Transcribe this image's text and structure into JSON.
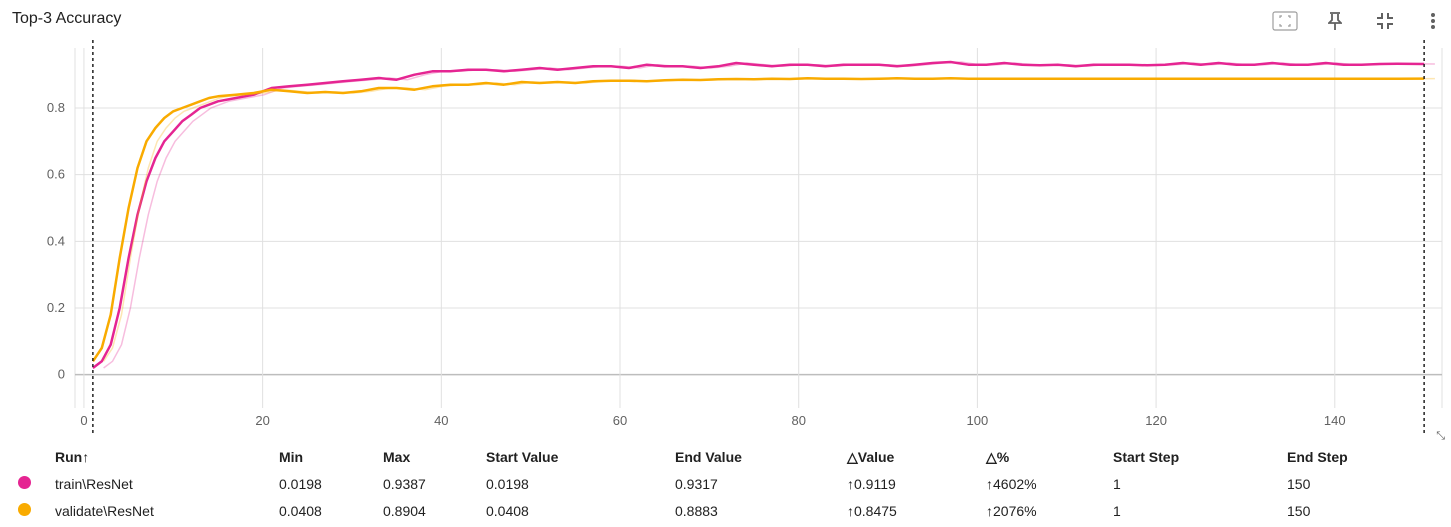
{
  "title": "Top-3 Accuracy",
  "toolbar": {
    "fit_icon": "fit-domain-icon",
    "pin_icon": "pin-icon",
    "collapse_icon": "collapse-icon",
    "more_icon": "more-vert-icon"
  },
  "colors": {
    "train": "#e52592",
    "validate": "#f9ab00"
  },
  "chart_data": {
    "type": "line",
    "xlim": [
      -1,
      152
    ],
    "ylim": [
      -0.1,
      0.98
    ],
    "x_ticks": [
      0,
      20,
      40,
      60,
      80,
      100,
      120,
      140
    ],
    "y_ticks": [
      0,
      0.2,
      0.4,
      0.6,
      0.8
    ],
    "y_tick_labels": [
      "0",
      "0.2",
      "0.4",
      "0.6",
      "0.8"
    ],
    "range_markers": [
      {
        "step": 1,
        "label": "1"
      },
      {
        "step": 150,
        "label": "150"
      }
    ],
    "grid": true,
    "series": [
      {
        "name": "train\\ResNet",
        "color": "#e52592",
        "x": [
          1,
          2,
          3,
          4,
          5,
          6,
          7,
          8,
          9,
          10,
          11,
          12,
          13,
          14,
          15,
          17,
          19,
          21,
          23,
          25,
          27,
          29,
          31,
          33,
          35,
          37,
          39,
          41,
          43,
          45,
          47,
          49,
          51,
          53,
          55,
          57,
          59,
          61,
          63,
          65,
          67,
          69,
          71,
          73,
          75,
          77,
          79,
          81,
          83,
          85,
          87,
          89,
          91,
          93,
          95,
          97,
          99,
          101,
          103,
          105,
          107,
          109,
          111,
          113,
          115,
          117,
          119,
          121,
          123,
          125,
          127,
          129,
          131,
          133,
          135,
          137,
          139,
          141,
          143,
          145,
          147,
          150
        ],
        "y": [
          0.02,
          0.04,
          0.09,
          0.2,
          0.35,
          0.48,
          0.58,
          0.65,
          0.7,
          0.73,
          0.76,
          0.78,
          0.8,
          0.81,
          0.82,
          0.83,
          0.84,
          0.86,
          0.865,
          0.87,
          0.875,
          0.88,
          0.885,
          0.89,
          0.885,
          0.9,
          0.91,
          0.91,
          0.915,
          0.915,
          0.91,
          0.915,
          0.92,
          0.915,
          0.92,
          0.925,
          0.925,
          0.92,
          0.93,
          0.925,
          0.925,
          0.92,
          0.925,
          0.935,
          0.93,
          0.925,
          0.93,
          0.93,
          0.925,
          0.93,
          0.93,
          0.93,
          0.925,
          0.93,
          0.935,
          0.938,
          0.93,
          0.93,
          0.935,
          0.93,
          0.928,
          0.93,
          0.925,
          0.93,
          0.93,
          0.93,
          0.928,
          0.93,
          0.935,
          0.93,
          0.935,
          0.93,
          0.93,
          0.935,
          0.93,
          0.93,
          0.935,
          0.93,
          0.93,
          0.932,
          0.933,
          0.932
        ]
      },
      {
        "name": "validate\\ResNet",
        "color": "#f9ab00",
        "x": [
          1,
          2,
          3,
          4,
          5,
          6,
          7,
          8,
          9,
          10,
          11,
          12,
          13,
          14,
          15,
          17,
          19,
          21,
          23,
          25,
          27,
          29,
          31,
          33,
          35,
          37,
          39,
          41,
          43,
          45,
          47,
          49,
          51,
          53,
          55,
          57,
          59,
          61,
          63,
          65,
          67,
          69,
          71,
          73,
          75,
          77,
          79,
          81,
          83,
          85,
          87,
          89,
          91,
          93,
          95,
          97,
          99,
          101,
          103,
          105,
          107,
          109,
          111,
          113,
          115,
          117,
          119,
          121,
          123,
          125,
          127,
          129,
          131,
          133,
          135,
          137,
          139,
          141,
          143,
          145,
          147,
          150
        ],
        "y": [
          0.04,
          0.08,
          0.18,
          0.35,
          0.5,
          0.62,
          0.7,
          0.74,
          0.77,
          0.79,
          0.8,
          0.81,
          0.82,
          0.83,
          0.835,
          0.84,
          0.845,
          0.855,
          0.85,
          0.845,
          0.848,
          0.845,
          0.85,
          0.86,
          0.86,
          0.855,
          0.865,
          0.87,
          0.87,
          0.875,
          0.87,
          0.878,
          0.875,
          0.878,
          0.875,
          0.88,
          0.882,
          0.882,
          0.88,
          0.883,
          0.885,
          0.884,
          0.886,
          0.887,
          0.886,
          0.888,
          0.887,
          0.889,
          0.888,
          0.888,
          0.887,
          0.888,
          0.889,
          0.888,
          0.888,
          0.889,
          0.888,
          0.888,
          0.888,
          0.888,
          0.888,
          0.888,
          0.888,
          0.888,
          0.888,
          0.888,
          0.888,
          0.888,
          0.888,
          0.888,
          0.888,
          0.888,
          0.888,
          0.888,
          0.888,
          0.888,
          0.888,
          0.888,
          0.888,
          0.888,
          0.888,
          0.8883
        ]
      }
    ]
  },
  "table": {
    "headers": [
      "Run↑",
      "Min",
      "Max",
      "Start Value",
      "End Value",
      "△Value",
      "△%",
      "Start Step",
      "End Step"
    ],
    "rows": [
      {
        "run": "train\\ResNet",
        "color": "#e52592",
        "min": "0.0198",
        "max": "0.9387",
        "start_value": "0.0198",
        "end_value": "0.9317",
        "delta_value": "↑0.9119",
        "delta_pct": "↑4602%",
        "start_step": "1",
        "end_step": "150"
      },
      {
        "run": "validate\\ResNet",
        "color": "#f9ab00",
        "min": "0.0408",
        "max": "0.8904",
        "start_value": "0.0408",
        "end_value": "0.8883",
        "delta_value": "↑0.8475",
        "delta_pct": "↑2076%",
        "start_step": "1",
        "end_step": "150"
      }
    ]
  }
}
